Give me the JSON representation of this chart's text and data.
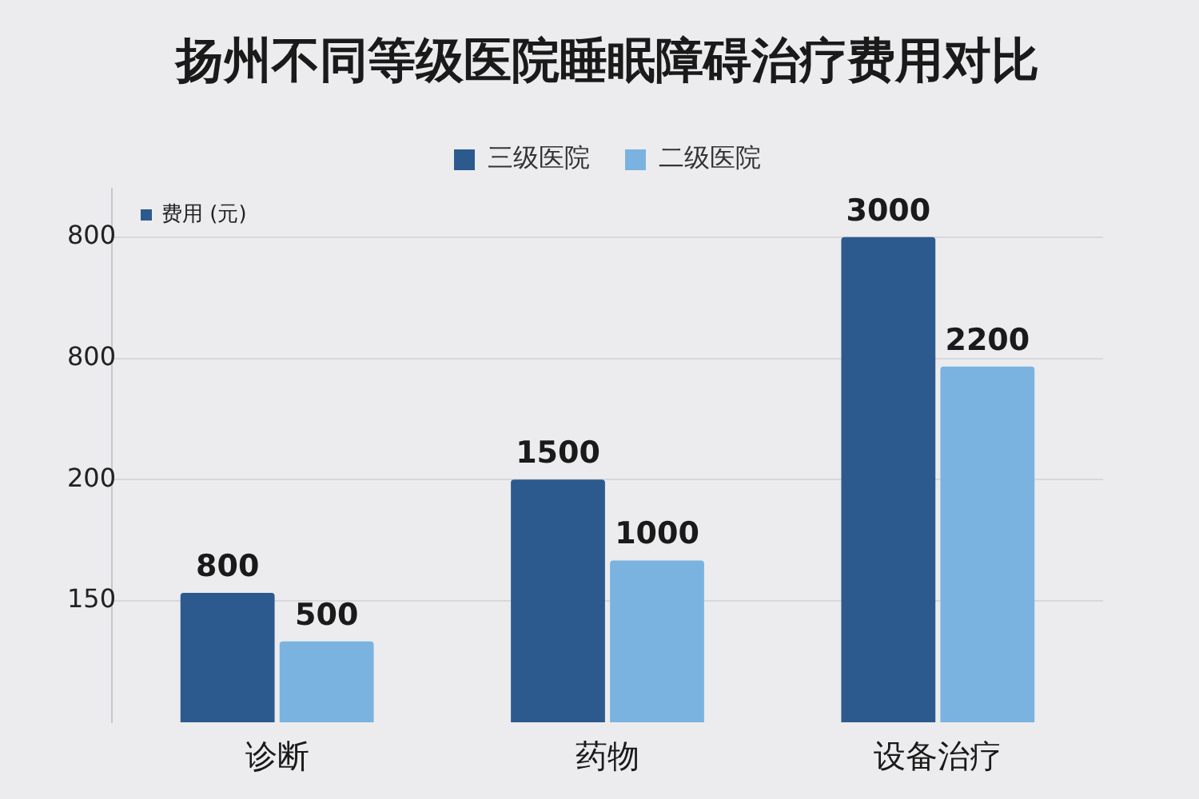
{
  "chart_data": {
    "type": "bar",
    "title": "扬州不同等级医院睡眠障碍治疗费用对比",
    "ylabel": "费用 (元)",
    "categories": [
      "诊断",
      "药物",
      "设备治疗"
    ],
    "series": [
      {
        "name": "三级医院",
        "color": "#2d5a8e",
        "values": [
          800,
          1500,
          3000
        ]
      },
      {
        "name": "二级医院",
        "color": "#7ab3e0",
        "values": [
          500,
          1000,
          2200
        ]
      }
    ],
    "ylim": [
      0,
      3300
    ],
    "yticks": [
      {
        "value": 750,
        "label": null
      },
      {
        "value": 1500,
        "label": null
      },
      {
        "value": 2250,
        "label": null
      },
      {
        "value": 3000,
        "label": null
      }
    ],
    "annotations": [
      "150",
      "200",
      "800",
      "800"
    ],
    "grid": "y",
    "legend": "top",
    "data_labels": true
  }
}
